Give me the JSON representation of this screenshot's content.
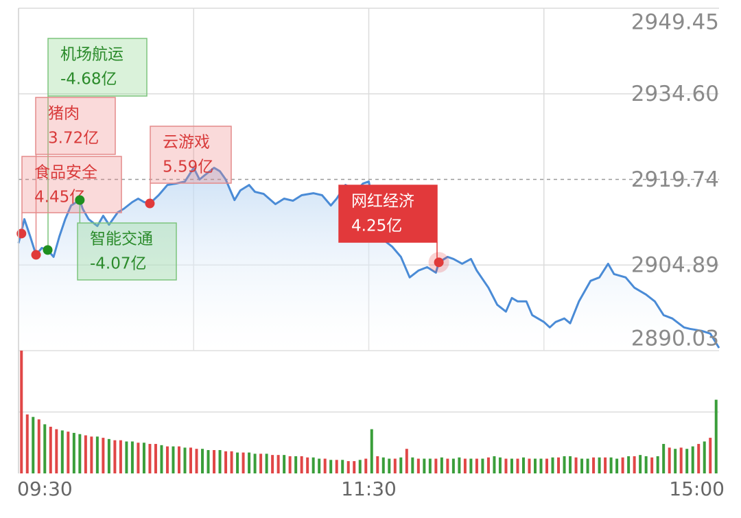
{
  "chart_data": [
    {
      "type": "line",
      "color": "#4a8bd6",
      "x": [
        0,
        2,
        4,
        6,
        8,
        10,
        12,
        14,
        16,
        18,
        21,
        22,
        24,
        27,
        29,
        31,
        34,
        36,
        39,
        41,
        43,
        45,
        48,
        51,
        54,
        57,
        60,
        62,
        64,
        67,
        69,
        71,
        74,
        76,
        79,
        81,
        84,
        88,
        91,
        94,
        97,
        101,
        104,
        107,
        109,
        112,
        116,
        118,
        120,
        123,
        125,
        128,
        131,
        134,
        137,
        140,
        143,
        144,
        147,
        149,
        152,
        155,
        157,
        161,
        164,
        167,
        169,
        171,
        174,
        176,
        180,
        182,
        184,
        187,
        189,
        192,
        196,
        199,
        202,
        204,
        208,
        211,
        215,
        218,
        221,
        224,
        228,
        230,
        234,
        237,
        240
      ],
      "values": [
        2908.67,
        2912.84,
        2909.86,
        2906.65,
        2907.84,
        2907.49,
        2906.3,
        2909.86,
        2912.84,
        2915.21,
        2916.16,
        2914.62,
        2912.84,
        2911.65,
        2913.43,
        2911.88,
        2914.02,
        2914.62,
        2915.81,
        2916.4,
        2915.81,
        2915.57,
        2917.0,
        2918.78,
        2919.02,
        2919.37,
        2921.75,
        2919.73,
        2920.56,
        2921.75,
        2921.16,
        2919.73,
        2916.16,
        2917.83,
        2918.78,
        2917.59,
        2917.23,
        2915.45,
        2916.4,
        2916.04,
        2917.0,
        2917.35,
        2917.0,
        2915.21,
        2916.4,
        2918.78,
        2917.83,
        2919.02,
        2919.37,
        2911.65,
        2909.27,
        2908.08,
        2906.3,
        2902.73,
        2903.92,
        2904.51,
        2903.56,
        2905.35,
        2906.3,
        2905.94,
        2905.11,
        2905.94,
        2903.92,
        2900.95,
        2897.98,
        2896.79,
        2899.16,
        2898.57,
        2898.57,
        2896.19,
        2895.0,
        2894.05,
        2895.0,
        2895.6,
        2894.77,
        2898.57,
        2902.14,
        2902.73,
        2905.11,
        2903.32,
        2902.73,
        2900.95,
        2899.76,
        2898.57,
        2896.19,
        2895.6,
        2894.05,
        2893.81,
        2893.46,
        2892.98,
        2890.49
      ],
      "xlim": [
        0,
        240
      ],
      "xticks": [
        {
          "value": 0,
          "label": "09:30"
        },
        {
          "value": 60,
          "label": null
        },
        {
          "value": 120,
          "label": "11:30"
        },
        {
          "value": 180,
          "label": null
        },
        {
          "value": 240,
          "label": "15:00"
        }
      ],
      "ylim": [
        2890.03,
        2949.45
      ],
      "yticks": [
        2949.45,
        {
          "value": 2934.6,
          "label": "2934.60"
        },
        2919.74,
        2904.89,
        2890.03
      ],
      "grid": true,
      "reference_line": 2919.74,
      "annotations": [
        {
          "text": "机场航运",
          "label": "-4.68亿",
          "x": 10,
          "y": 2907.49,
          "color": "green"
        },
        {
          "text": "猪肉",
          "label": "3.72亿",
          "x": 6,
          "y": 2906.65,
          "color": "red"
        },
        {
          "text": "食品安全",
          "label": "4.45亿",
          "x": 1,
          "y": 2910.34,
          "color": "red"
        },
        {
          "text": "云游戏",
          "label": "5.59亿",
          "x": 45,
          "y": 2915.57,
          "color": "red"
        },
        {
          "text": "智能交通",
          "label": "-4.07亿",
          "x": 21,
          "y": 2916.16,
          "color": "green"
        },
        {
          "text": "网红经济",
          "label": "4.25亿",
          "x": 144,
          "y": 2905.35,
          "color": "red",
          "highlight": true
        }
      ]
    },
    {
      "type": "bar",
      "values": [
        100,
        48,
        46,
        44,
        40,
        38,
        36,
        35,
        34,
        33,
        32,
        31,
        30,
        30,
        29,
        28,
        27,
        27,
        26,
        26,
        25,
        25,
        24,
        24,
        23,
        22,
        22,
        22,
        21,
        21,
        20,
        20,
        19,
        19,
        19,
        18,
        18,
        17,
        17,
        17,
        16,
        16,
        16,
        15,
        15,
        15,
        14,
        14,
        14,
        13,
        13,
        12,
        12,
        11,
        11,
        11,
        10,
        10,
        11,
        12,
        36,
        14,
        13,
        12,
        12,
        13,
        20,
        13,
        12,
        12,
        12,
        12,
        13,
        12,
        12,
        13,
        12,
        12,
        12,
        12,
        13,
        14,
        13,
        12,
        12,
        12,
        13,
        12,
        12,
        12,
        12,
        13,
        13,
        14,
        14,
        13,
        12,
        12,
        13,
        13,
        13,
        13,
        12,
        13,
        14,
        14,
        15,
        14,
        13,
        14,
        24,
        21,
        20,
        21,
        20,
        22,
        24,
        26,
        29,
        60
      ],
      "direction": [
        "up",
        "up",
        "down",
        "up",
        "down",
        "up",
        "up",
        "down",
        "up",
        "down",
        "down",
        "up",
        "up",
        "down",
        "up",
        "down",
        "up",
        "up",
        "down",
        "down",
        "up",
        "down",
        "up",
        "up",
        "down",
        "up",
        "down",
        "up",
        "down",
        "up",
        "up",
        "down",
        "down",
        "up",
        "down",
        "up",
        "up",
        "down",
        "up",
        "down",
        "down",
        "up",
        "down",
        "up",
        "up",
        "down",
        "up",
        "down",
        "up",
        "up",
        "down",
        "down",
        "up",
        "down",
        "up",
        "down",
        "up",
        "up",
        "down",
        "up",
        "down",
        "up",
        "down",
        "down",
        "up",
        "down",
        "up",
        "down",
        "up",
        "down",
        "down",
        "up",
        "down",
        "up",
        "down",
        "down",
        "up",
        "down",
        "up",
        "down",
        "up",
        "down",
        "down",
        "up",
        "down",
        "up",
        "down",
        "up",
        "down",
        "down",
        "up",
        "down",
        "up",
        "down",
        "down",
        "up",
        "down",
        "down",
        "up",
        "down",
        "up",
        "down",
        "down",
        "up",
        "down",
        "up",
        "down",
        "down",
        "up",
        "down",
        "down",
        "up",
        "down",
        "up",
        "down",
        "down",
        "up",
        "down",
        "up",
        "down"
      ],
      "palette": {
        "up": "#e04646",
        "down": "#3a9e3a"
      },
      "ylim": [
        0,
        100
      ],
      "yticks": [
        0,
        50,
        100
      ],
      "grid": true
    }
  ]
}
